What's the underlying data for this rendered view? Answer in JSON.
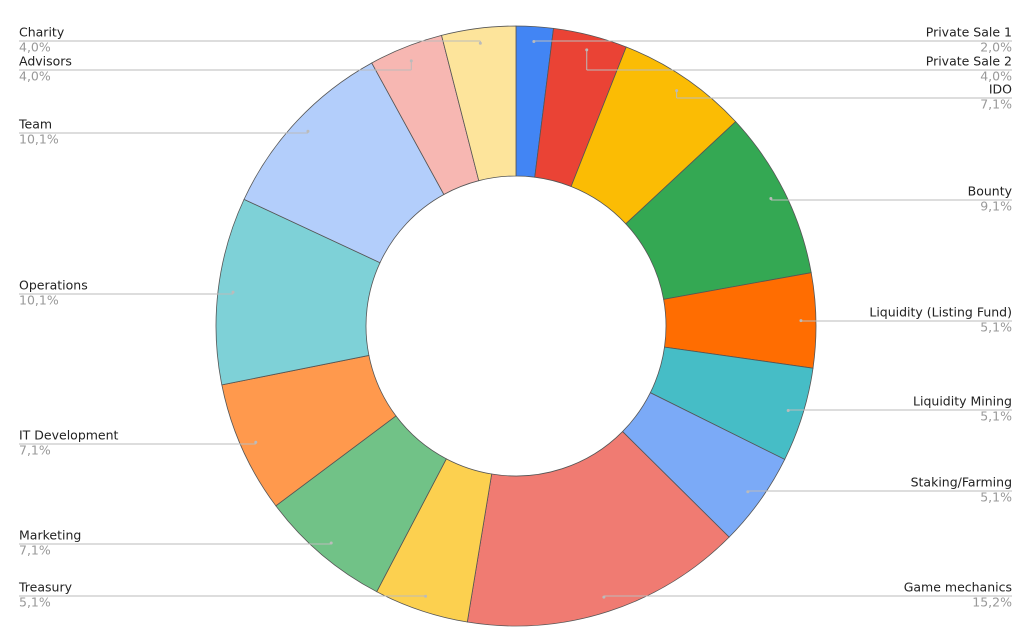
{
  "chart_data": {
    "type": "pie",
    "donut": true,
    "categories": [
      "Private Sale 1",
      "Private Sale 2",
      "IDO",
      "Bounty",
      "Liquidity (Listing Fund)",
      "Liquidity Mining",
      "Staking/Farming",
      "Game mechanics",
      "Treasury",
      "Marketing",
      "IT Development",
      "Operations",
      "Team",
      "Advisors",
      "Charity"
    ],
    "values": [
      2.0,
      4.0,
      7.1,
      9.1,
      5.1,
      5.1,
      5.1,
      15.2,
      5.1,
      7.1,
      7.1,
      10.1,
      10.1,
      4.0,
      4.0
    ],
    "value_labels": [
      "2,0%",
      "4,0%",
      "7,1%",
      "9,1%",
      "5,1%",
      "5,1%",
      "5,1%",
      "15,2%",
      "5,1%",
      "7,1%",
      "7,1%",
      "10,1%",
      "10,1%",
      "4,0%",
      "4,0%"
    ],
    "colors": [
      "#4285f4",
      "#ea4335",
      "#fbbc04",
      "#34a853",
      "#ff6d01",
      "#46bdc6",
      "#7baaf7",
      "#f07b72",
      "#fcd04f",
      "#71c287",
      "#ff994d",
      "#7ed1d7",
      "#b3cefb",
      "#f7b7b2",
      "#fde49b"
    ]
  }
}
